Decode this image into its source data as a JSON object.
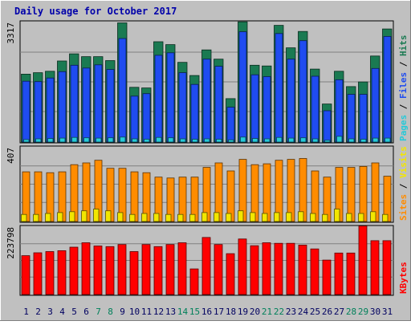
{
  "chart_data": {
    "title": "Daily usage for October 2017",
    "type": "bar",
    "categories": [
      "1",
      "2",
      "3",
      "4",
      "5",
      "6",
      "7",
      "8",
      "9",
      "10",
      "11",
      "12",
      "13",
      "14",
      "15",
      "16",
      "17",
      "18",
      "19",
      "20",
      "21",
      "22",
      "23",
      "24",
      "25",
      "26",
      "27",
      "28",
      "29",
      "30",
      "31"
    ],
    "weekend_days": [
      "7",
      "8",
      "14",
      "15",
      "21",
      "22",
      "28",
      "29"
    ],
    "panels": [
      {
        "id": "pages-files-hits",
        "ymax_label": "3317",
        "ymax": 3317,
        "axis_labels": [
          "Pages",
          "Files",
          "Hits"
        ],
        "series": [
          {
            "name": "Hits",
            "color": "#1a7a52",
            "values": [
              1910,
              1950,
              1990,
              2280,
              2480,
              2400,
              2400,
              2290,
              3350,
              1540,
              1520,
              2820,
              2740,
              2240,
              1870,
              2590,
              2330,
              1220,
              3380,
              2160,
              2140,
              3280,
              2650,
              3110,
              2050,
              1070,
              1990,
              1560,
              1690,
              2420,
              3180
            ]
          },
          {
            "name": "Files",
            "color": "#1f4cf0",
            "values": [
              1710,
              1700,
              1800,
              1980,
              2160,
              2080,
              2170,
              2040,
              2910,
              1290,
              1360,
              2440,
              2510,
              1950,
              1620,
              2330,
              2130,
              980,
              3100,
              1890,
              1840,
              3050,
              2330,
              2850,
              1850,
              880,
              1750,
              1340,
              1340,
              2070,
              2970
            ]
          },
          {
            "name": "Pages",
            "color": "#26c9d8",
            "values": [
              70,
              90,
              100,
              110,
              130,
              120,
              110,
              120,
              140,
              90,
              80,
              130,
              120,
              90,
              80,
              90,
              80,
              60,
              140,
              100,
              90,
              130,
              110,
              120,
              90,
              50,
              160,
              90,
              80,
              110,
              110
            ]
          }
        ]
      },
      {
        "id": "sites-visits",
        "ymax_label": "407",
        "ymax": 407,
        "axis_labels": [
          "Sites",
          "Visits"
        ],
        "series": [
          {
            "name": "Sites",
            "color": "#ff8c00",
            "values": [
              280,
              280,
              275,
              280,
              320,
              330,
              345,
              300,
              300,
              280,
              275,
              250,
              245,
              250,
              250,
              305,
              330,
              285,
              350,
              320,
              325,
              345,
              350,
              355,
              285,
              250,
              305,
              305,
              310,
              330,
              255
            ]
          },
          {
            "name": "Visits",
            "color": "#f2e600",
            "values": [
              40,
              40,
              45,
              50,
              55,
              60,
              70,
              60,
              50,
              40,
              45,
              45,
              40,
              40,
              40,
              50,
              50,
              45,
              60,
              50,
              45,
              50,
              50,
              55,
              45,
              40,
              70,
              45,
              45,
              55,
              40
            ]
          }
        ]
      },
      {
        "id": "kbytes",
        "ymax_label": "223798",
        "ymax": 223798,
        "axis_labels": [
          "KBytes"
        ],
        "series": [
          {
            "name": "KBytes",
            "color": "#ff0000",
            "values": [
              132000,
              142000,
              146000,
              149000,
              161000,
              176000,
              165000,
              163000,
              170000,
              146000,
              170000,
              163000,
              170000,
              176000,
              87000,
              194000,
              170000,
              139000,
              189000,
              166000,
              176000,
              174000,
              174000,
              168000,
              155000,
              117000,
              141000,
              141000,
              233000,
              183000,
              183000
            ]
          }
        ]
      }
    ]
  }
}
